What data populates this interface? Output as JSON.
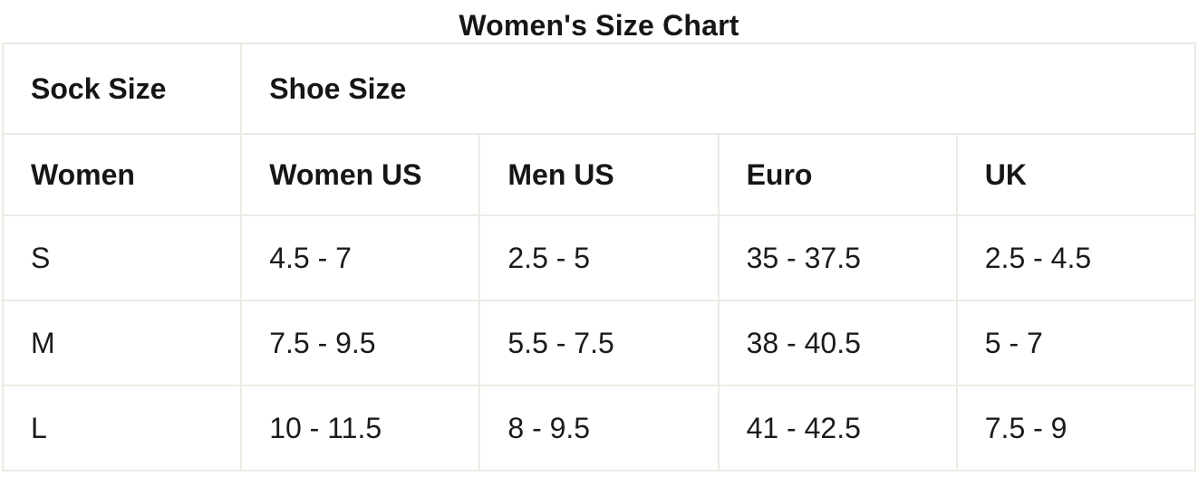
{
  "chart_data": {
    "type": "table",
    "title": "Women's Size Chart",
    "group_headers": [
      {
        "label": "Sock Size",
        "span": 1
      },
      {
        "label": "Shoe Size",
        "span": 4
      }
    ],
    "columns": [
      "Women",
      "Women US",
      "Men US",
      "Euro",
      "UK"
    ],
    "rows": [
      [
        "S",
        "4.5 - 7",
        "2.5 - 5",
        "35 - 37.5",
        "2.5 - 4.5"
      ],
      [
        "M",
        "7.5 - 9.5",
        "5.5 - 7.5",
        "38 - 40.5",
        "5 - 7"
      ],
      [
        "L",
        "10 - 11.5",
        "8 - 9.5",
        "41 - 42.5",
        "7.5 - 9"
      ]
    ],
    "layout": {
      "grid": true,
      "border_color": "#ecebe3",
      "text_color": "#1b1b1b",
      "background_color": "#ffffff",
      "title_position": "top-center"
    }
  }
}
